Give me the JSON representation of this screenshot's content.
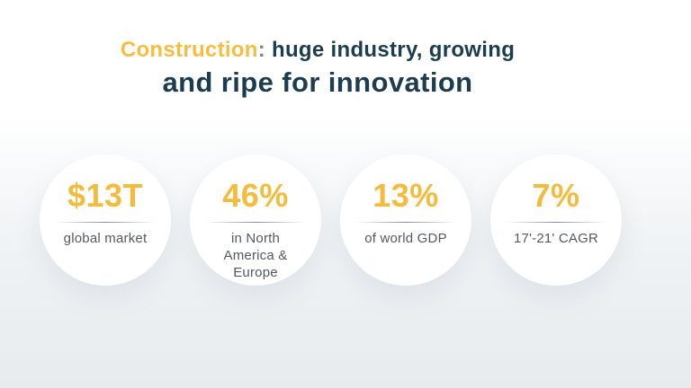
{
  "title": {
    "highlight": "Construction",
    "colon": ":",
    "line1_rest": " huge industry, growing",
    "line2": "and ripe for innovation"
  },
  "stats": [
    {
      "value": "$13T",
      "label": "global market"
    },
    {
      "value": "46%",
      "label": "in North America & Europe"
    },
    {
      "value": "13%",
      "label": "of world GDP"
    },
    {
      "value": "7%",
      "label": "17'-21' CAGR"
    }
  ],
  "colors": {
    "accent_yellow": "#F5BB3D",
    "title_navy": "#1C3D4F",
    "label_gray": "#55595E",
    "divider_purple": "#7C6BB2",
    "background_bottom": "#E7EBEE"
  }
}
